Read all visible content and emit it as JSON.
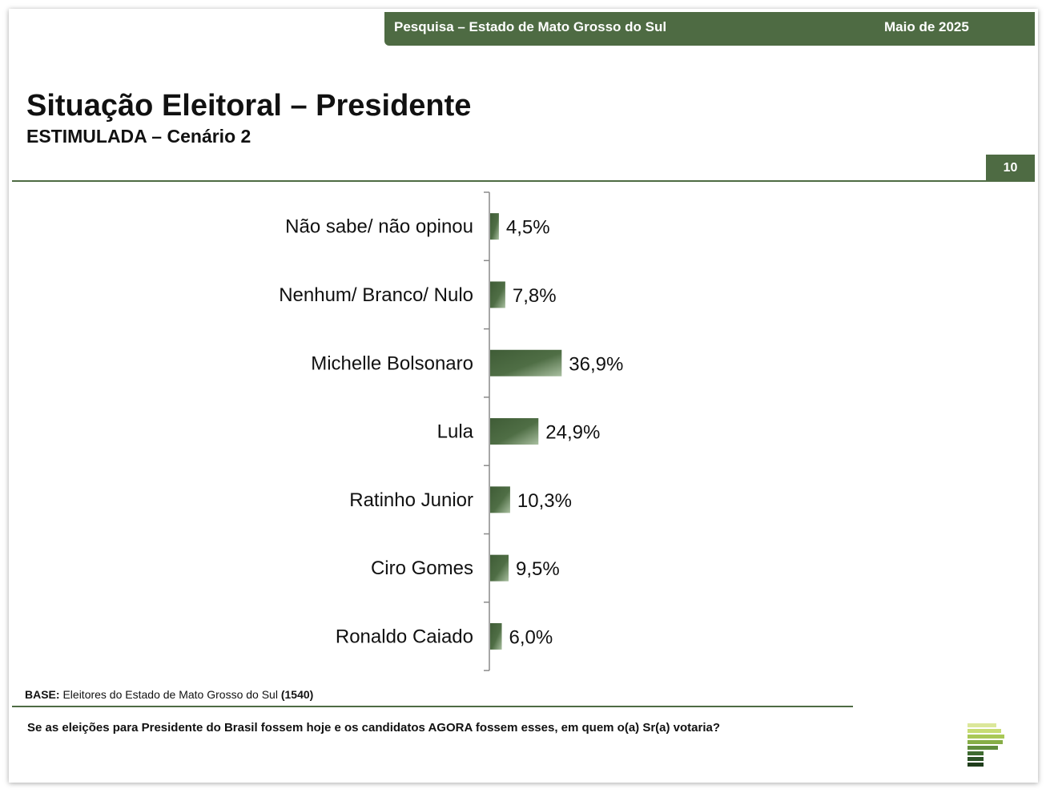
{
  "header": {
    "survey_label": "Pesquisa – Estado de Mato Grosso do Sul",
    "date_label": "Maio de 2025",
    "title": "Situação Eleitoral – Presidente",
    "subtitle": "ESTIMULADA – Cenário 2",
    "page_number": "10"
  },
  "footer": {
    "base_label": "BASE:",
    "base_text": "Eleitores do Estado de Mato Grosso do Sul",
    "base_count": "(1540)",
    "question": "Se as eleições para Presidente do Brasil fossem hoje e os candidatos AGORA fossem esses, em quem o(a) Sr(a) votaria?"
  },
  "colors": {
    "brand_green": "#4e6b43",
    "bar_dark": "#3f5c36",
    "bar_light": "#a9bfa0"
  },
  "chart_data": {
    "type": "bar",
    "orientation": "horizontal",
    "categories": [
      "Não sabe/ não opinou",
      "Nenhum/ Branco/ Nulo",
      "Michelle Bolsonaro",
      "Lula",
      "Ratinho Junior",
      "Ciro Gomes",
      "Ronaldo Caiado"
    ],
    "values": [
      4.5,
      7.8,
      36.9,
      24.9,
      10.3,
      9.5,
      6.0
    ],
    "value_labels": [
      "4,5%",
      "7,8%",
      "36,9%",
      "24,9%",
      "10,3%",
      "9,5%",
      "6,0%"
    ],
    "unit": "%",
    "grid": false,
    "legend": "none"
  }
}
